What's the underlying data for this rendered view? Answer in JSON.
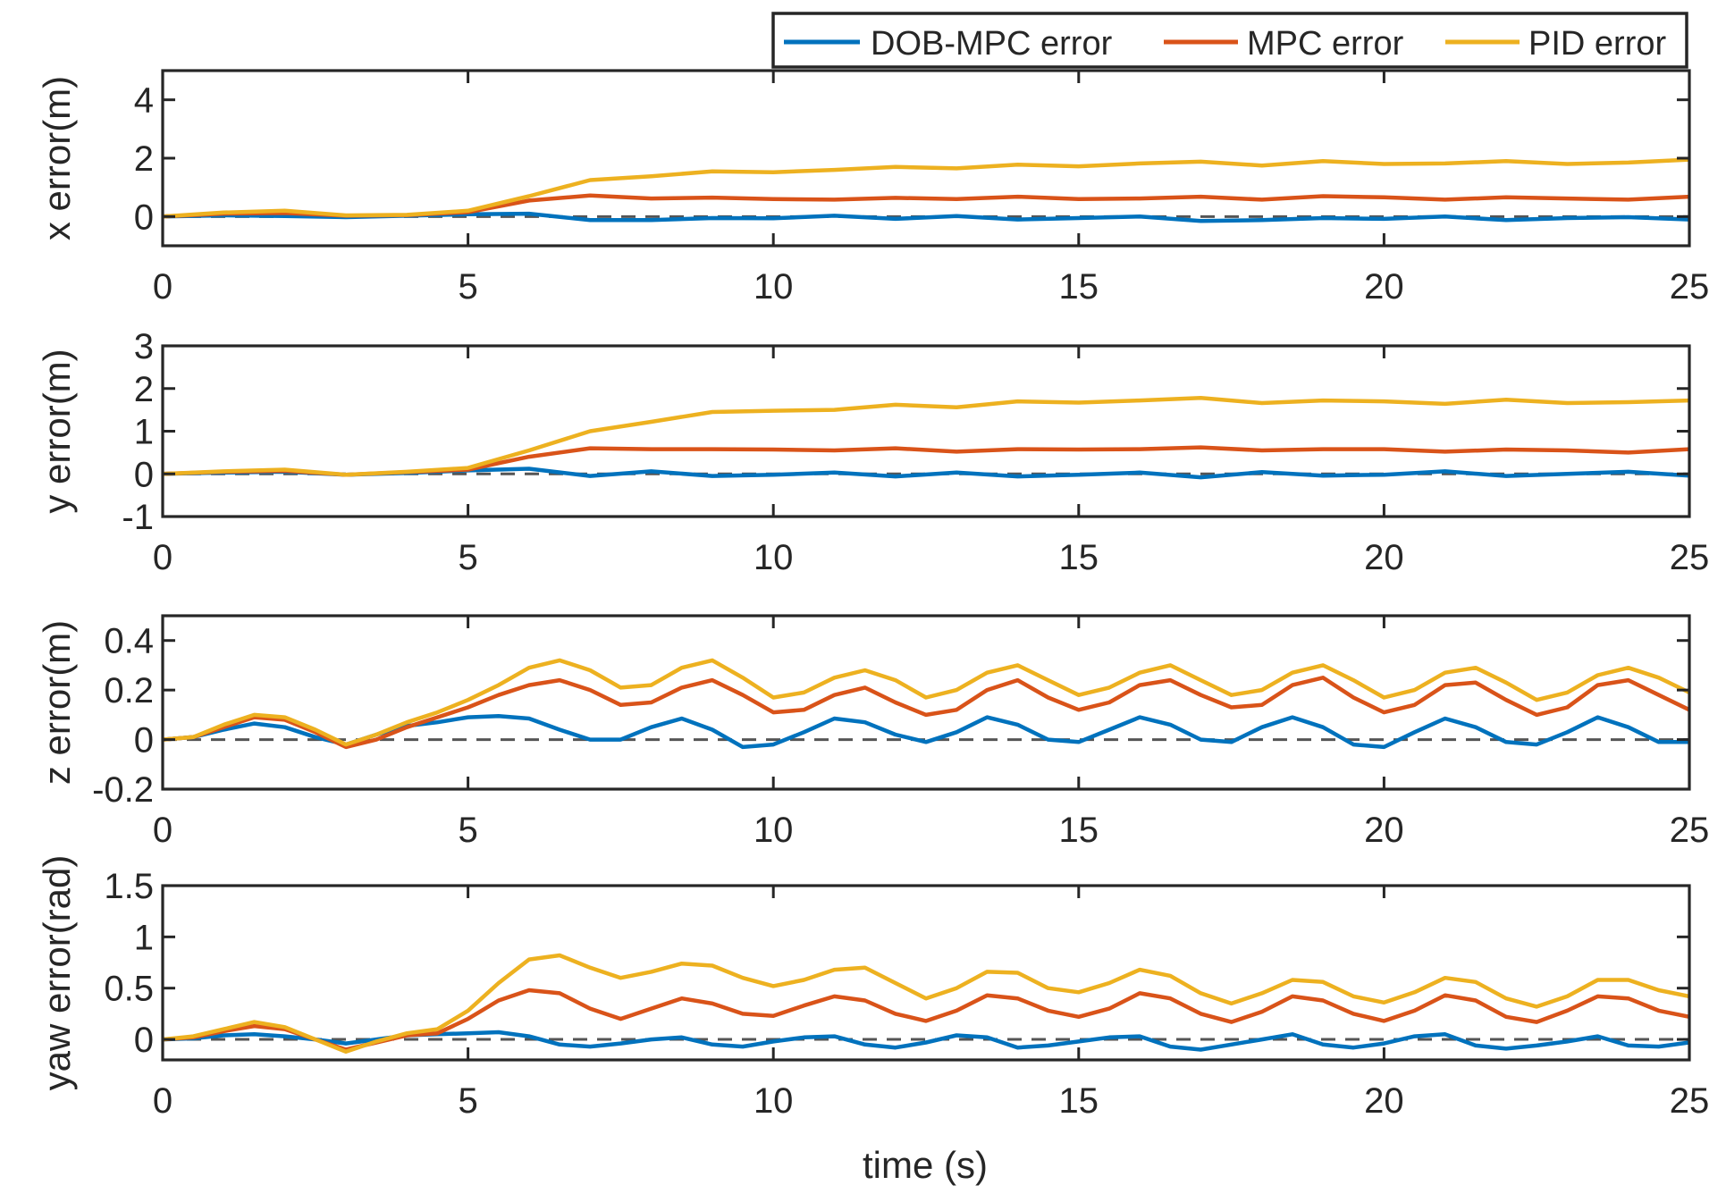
{
  "figure": {
    "legend_position": "top-right, above first subplot",
    "xlabel": "time (s)"
  },
  "chart_data": [
    {
      "type": "line",
      "title": "",
      "xlabel": "",
      "ylabel": "x error(m)",
      "xlim": [
        0,
        25
      ],
      "ylim": [
        -1,
        5
      ],
      "xticks": [
        "0",
        "5",
        "10",
        "15",
        "20",
        "25"
      ],
      "xtick_values": [
        0,
        5,
        10,
        15,
        20,
        25
      ],
      "yticks": [
        "0",
        "2",
        "4"
      ],
      "ytick_values": [
        0,
        2,
        4
      ],
      "reference_line": 0,
      "x": [
        0,
        1,
        2,
        3,
        4,
        5,
        6,
        7,
        8,
        9,
        10,
        11,
        12,
        13,
        14,
        15,
        16,
        17,
        18,
        19,
        20,
        21,
        22,
        23,
        24,
        25
      ],
      "series": [
        {
          "name": "DOB-MPC error",
          "color": "#0072BD",
          "values": [
            0,
            0.04,
            0.02,
            -0.02,
            0.03,
            0.08,
            0.1,
            -0.12,
            -0.12,
            -0.05,
            -0.06,
            0.03,
            -0.08,
            0.02,
            -0.1,
            -0.05,
            0.0,
            -0.15,
            -0.12,
            -0.05,
            -0.08,
            0.0,
            -0.12,
            -0.05,
            -0.02,
            -0.1
          ]
        },
        {
          "name": "MPC error",
          "color": "#D95319",
          "values": [
            0,
            0.1,
            0.12,
            0.03,
            0.05,
            0.15,
            0.55,
            0.72,
            0.62,
            0.65,
            0.6,
            0.58,
            0.64,
            0.6,
            0.68,
            0.6,
            0.62,
            0.68,
            0.58,
            0.7,
            0.66,
            0.58,
            0.66,
            0.62,
            0.58,
            0.68
          ]
        },
        {
          "name": "PID error",
          "color": "#EDB120",
          "values": [
            0,
            0.14,
            0.2,
            0.04,
            0.06,
            0.2,
            0.7,
            1.25,
            1.38,
            1.55,
            1.52,
            1.6,
            1.7,
            1.65,
            1.78,
            1.72,
            1.82,
            1.88,
            1.75,
            1.9,
            1.8,
            1.82,
            1.9,
            1.8,
            1.85,
            1.95
          ]
        }
      ]
    },
    {
      "type": "line",
      "title": "",
      "xlabel": "",
      "ylabel": "y error(m)",
      "xlim": [
        0,
        25
      ],
      "ylim": [
        -1,
        3
      ],
      "xticks": [
        "0",
        "5",
        "10",
        "15",
        "20",
        "25"
      ],
      "xtick_values": [
        0,
        5,
        10,
        15,
        20,
        25
      ],
      "yticks": [
        "-1",
        "0",
        "1",
        "2",
        "3"
      ],
      "ytick_values": [
        -1,
        0,
        1,
        2,
        3
      ],
      "reference_line": 0,
      "x": [
        0,
        1,
        2,
        3,
        4,
        5,
        6,
        7,
        8,
        9,
        10,
        11,
        12,
        13,
        14,
        15,
        16,
        17,
        18,
        19,
        20,
        21,
        22,
        23,
        24,
        25
      ],
      "series": [
        {
          "name": "DOB-MPC error",
          "color": "#0072BD",
          "values": [
            0,
            0.03,
            0.05,
            -0.02,
            0.02,
            0.08,
            0.12,
            -0.05,
            0.06,
            -0.05,
            -0.02,
            0.03,
            -0.06,
            0.03,
            -0.06,
            -0.02,
            0.03,
            -0.08,
            0.04,
            -0.04,
            -0.02,
            0.06,
            -0.05,
            0.0,
            0.05,
            -0.04
          ]
        },
        {
          "name": "MPC error",
          "color": "#D95319",
          "values": [
            0,
            0.05,
            0.07,
            -0.02,
            0.04,
            0.1,
            0.4,
            0.6,
            0.58,
            0.58,
            0.57,
            0.55,
            0.6,
            0.52,
            0.58,
            0.57,
            0.58,
            0.62,
            0.55,
            0.58,
            0.58,
            0.52,
            0.57,
            0.55,
            0.5,
            0.58
          ]
        },
        {
          "name": "PID error",
          "color": "#EDB120",
          "values": [
            0,
            0.06,
            0.1,
            -0.02,
            0.05,
            0.14,
            0.55,
            1.0,
            1.22,
            1.45,
            1.48,
            1.5,
            1.62,
            1.56,
            1.7,
            1.67,
            1.72,
            1.78,
            1.66,
            1.72,
            1.7,
            1.64,
            1.74,
            1.66,
            1.68,
            1.72
          ]
        }
      ]
    },
    {
      "type": "line",
      "title": "",
      "xlabel": "",
      "ylabel": "z error(m)",
      "xlim": [
        0,
        25
      ],
      "ylim": [
        -0.2,
        0.5
      ],
      "xticks": [
        "0",
        "5",
        "10",
        "15",
        "20",
        "25"
      ],
      "xtick_values": [
        0,
        5,
        10,
        15,
        20,
        25
      ],
      "yticks": [
        "-0.2",
        "0",
        "0.2",
        "0.4"
      ],
      "ytick_values": [
        -0.2,
        0,
        0.2,
        0.4
      ],
      "reference_line": 0,
      "x": [
        0,
        0.5,
        1,
        1.5,
        2,
        2.5,
        3,
        3.5,
        4,
        4.5,
        5,
        5.5,
        6,
        6.5,
        7,
        7.5,
        8,
        8.5,
        9,
        9.5,
        10,
        10.5,
        11,
        11.5,
        12,
        12.5,
        13,
        13.5,
        14,
        14.5,
        15,
        15.5,
        16,
        16.5,
        17,
        17.5,
        18,
        18.5,
        19,
        19.5,
        20,
        20.5,
        21,
        21.5,
        22,
        22.5,
        23,
        23.5,
        24,
        24.5,
        25
      ],
      "series": [
        {
          "name": "DOB-MPC error",
          "color": "#0072BD",
          "values": [
            0,
            0.01,
            0.04,
            0.065,
            0.05,
            0.01,
            -0.02,
            0.02,
            0.055,
            0.07,
            0.09,
            0.095,
            0.085,
            0.04,
            0.0,
            0.0,
            0.05,
            0.085,
            0.04,
            -0.03,
            -0.02,
            0.03,
            0.085,
            0.07,
            0.02,
            -0.01,
            0.03,
            0.09,
            0.06,
            0.0,
            -0.01,
            0.04,
            0.09,
            0.06,
            0.0,
            -0.01,
            0.05,
            0.09,
            0.05,
            -0.02,
            -0.03,
            0.03,
            0.085,
            0.05,
            -0.01,
            -0.02,
            0.03,
            0.09,
            0.05,
            -0.01,
            -0.01
          ]
        },
        {
          "name": "MPC error",
          "color": "#D95319",
          "values": [
            0,
            0.01,
            0.05,
            0.09,
            0.08,
            0.03,
            -0.03,
            0.0,
            0.05,
            0.09,
            0.13,
            0.18,
            0.22,
            0.24,
            0.2,
            0.14,
            0.15,
            0.21,
            0.24,
            0.18,
            0.11,
            0.12,
            0.18,
            0.21,
            0.15,
            0.1,
            0.12,
            0.2,
            0.24,
            0.17,
            0.12,
            0.15,
            0.22,
            0.24,
            0.18,
            0.13,
            0.14,
            0.22,
            0.25,
            0.17,
            0.11,
            0.14,
            0.22,
            0.23,
            0.16,
            0.1,
            0.13,
            0.22,
            0.24,
            0.18,
            0.12
          ]
        },
        {
          "name": "PID error",
          "color": "#EDB120",
          "values": [
            0,
            0.01,
            0.06,
            0.1,
            0.09,
            0.04,
            -0.02,
            0.02,
            0.07,
            0.11,
            0.16,
            0.22,
            0.29,
            0.32,
            0.28,
            0.21,
            0.22,
            0.29,
            0.32,
            0.25,
            0.17,
            0.19,
            0.25,
            0.28,
            0.24,
            0.17,
            0.2,
            0.27,
            0.3,
            0.24,
            0.18,
            0.21,
            0.27,
            0.3,
            0.24,
            0.18,
            0.2,
            0.27,
            0.3,
            0.24,
            0.17,
            0.2,
            0.27,
            0.29,
            0.23,
            0.16,
            0.19,
            0.26,
            0.29,
            0.25,
            0.19
          ]
        }
      ]
    },
    {
      "type": "line",
      "title": "",
      "xlabel": "time (s)",
      "ylabel": "yaw error(rad)",
      "xlim": [
        0,
        25
      ],
      "ylim": [
        -0.2,
        1.5
      ],
      "xticks": [
        "0",
        "5",
        "10",
        "15",
        "20",
        "25"
      ],
      "xtick_values": [
        0,
        5,
        10,
        15,
        20,
        25
      ],
      "yticks": [
        "0",
        "0.5",
        "1",
        "1.5"
      ],
      "ytick_values": [
        0,
        0.5,
        1,
        1.5
      ],
      "reference_line": 0,
      "x": [
        0,
        0.5,
        1,
        1.5,
        2,
        2.5,
        3,
        3.5,
        4,
        4.5,
        5,
        5.5,
        6,
        6.5,
        7,
        7.5,
        8,
        8.5,
        9,
        9.5,
        10,
        10.5,
        11,
        11.5,
        12,
        12.5,
        13,
        13.5,
        14,
        14.5,
        15,
        15.5,
        16,
        16.5,
        17,
        17.5,
        18,
        18.5,
        19,
        19.5,
        20,
        20.5,
        21,
        21.5,
        22,
        22.5,
        23,
        23.5,
        24,
        24.5,
        25
      ],
      "series": [
        {
          "name": "DOB-MPC error",
          "color": "#0072BD",
          "values": [
            0,
            0.01,
            0.04,
            0.05,
            0.03,
            0.0,
            -0.04,
            0.0,
            0.04,
            0.05,
            0.06,
            0.07,
            0.03,
            -0.05,
            -0.07,
            -0.04,
            0.0,
            0.02,
            -0.05,
            -0.07,
            -0.02,
            0.02,
            0.03,
            -0.05,
            -0.08,
            -0.03,
            0.04,
            0.02,
            -0.08,
            -0.06,
            -0.02,
            0.02,
            0.03,
            -0.07,
            -0.1,
            -0.05,
            0.0,
            0.05,
            -0.05,
            -0.08,
            -0.04,
            0.03,
            0.05,
            -0.06,
            -0.09,
            -0.06,
            -0.02,
            0.03,
            -0.06,
            -0.07,
            -0.03
          ]
        },
        {
          "name": "MPC error",
          "color": "#D95319",
          "values": [
            0,
            0.02,
            0.08,
            0.13,
            0.1,
            0.0,
            -0.1,
            -0.03,
            0.04,
            0.06,
            0.2,
            0.38,
            0.48,
            0.45,
            0.3,
            0.2,
            0.3,
            0.4,
            0.35,
            0.25,
            0.23,
            0.33,
            0.42,
            0.38,
            0.25,
            0.18,
            0.28,
            0.43,
            0.4,
            0.28,
            0.22,
            0.3,
            0.45,
            0.4,
            0.25,
            0.17,
            0.27,
            0.42,
            0.38,
            0.25,
            0.18,
            0.28,
            0.43,
            0.38,
            0.22,
            0.17,
            0.28,
            0.42,
            0.4,
            0.28,
            0.22
          ]
        },
        {
          "name": "PID error",
          "color": "#EDB120",
          "values": [
            0,
            0.03,
            0.1,
            0.17,
            0.12,
            0.0,
            -0.12,
            -0.02,
            0.06,
            0.1,
            0.28,
            0.55,
            0.78,
            0.82,
            0.7,
            0.6,
            0.66,
            0.74,
            0.72,
            0.6,
            0.52,
            0.58,
            0.68,
            0.7,
            0.55,
            0.4,
            0.5,
            0.66,
            0.65,
            0.5,
            0.46,
            0.55,
            0.68,
            0.62,
            0.45,
            0.35,
            0.45,
            0.58,
            0.56,
            0.42,
            0.36,
            0.46,
            0.6,
            0.56,
            0.4,
            0.32,
            0.42,
            0.58,
            0.58,
            0.48,
            0.42
          ]
        }
      ]
    }
  ]
}
